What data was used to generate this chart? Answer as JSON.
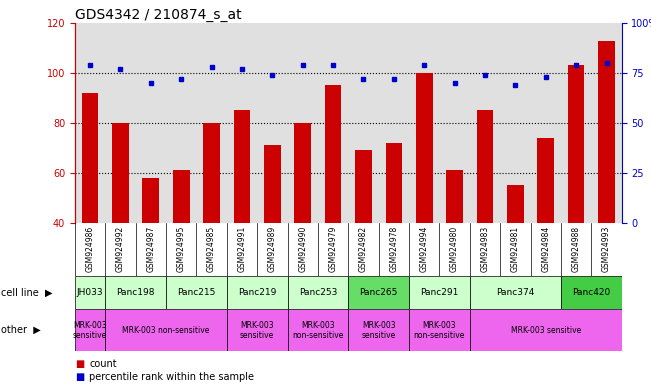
{
  "title": "GDS4342 / 210874_s_at",
  "samples": [
    "GSM924986",
    "GSM924992",
    "GSM924987",
    "GSM924995",
    "GSM924985",
    "GSM924991",
    "GSM924989",
    "GSM924990",
    "GSM924979",
    "GSM924982",
    "GSM924978",
    "GSM924994",
    "GSM924980",
    "GSM924983",
    "GSM924981",
    "GSM924984",
    "GSM924988",
    "GSM924993"
  ],
  "counts": [
    92,
    80,
    58,
    61,
    80,
    85,
    71,
    80,
    95,
    69,
    72,
    100,
    61,
    85,
    55,
    74,
    103,
    113
  ],
  "percentiles": [
    79,
    77,
    70,
    72,
    78,
    77,
    74,
    79,
    79,
    72,
    72,
    79,
    70,
    74,
    69,
    73,
    79,
    80
  ],
  "cell_lines": [
    {
      "label": "JH033",
      "start": 0,
      "end": 1,
      "color": "#ccffcc"
    },
    {
      "label": "Panc198",
      "start": 1,
      "end": 3,
      "color": "#ccffcc"
    },
    {
      "label": "Panc215",
      "start": 3,
      "end": 5,
      "color": "#ccffcc"
    },
    {
      "label": "Panc219",
      "start": 5,
      "end": 7,
      "color": "#ccffcc"
    },
    {
      "label": "Panc253",
      "start": 7,
      "end": 9,
      "color": "#ccffcc"
    },
    {
      "label": "Panc265",
      "start": 9,
      "end": 11,
      "color": "#66dd66"
    },
    {
      "label": "Panc291",
      "start": 11,
      "end": 13,
      "color": "#ccffcc"
    },
    {
      "label": "Panc374",
      "start": 13,
      "end": 16,
      "color": "#ccffcc"
    },
    {
      "label": "Panc420",
      "start": 16,
      "end": 18,
      "color": "#44cc44"
    }
  ],
  "other_groups": [
    {
      "label": "MRK-003\nsensitive",
      "start": 0,
      "end": 1,
      "color": "#ee66ee"
    },
    {
      "label": "MRK-003 non-sensitive",
      "start": 1,
      "end": 5,
      "color": "#ee66ee"
    },
    {
      "label": "MRK-003\nsensitive",
      "start": 5,
      "end": 7,
      "color": "#ee66ee"
    },
    {
      "label": "MRK-003\nnon-sensitive",
      "start": 7,
      "end": 9,
      "color": "#ee66ee"
    },
    {
      "label": "MRK-003\nsensitive",
      "start": 9,
      "end": 11,
      "color": "#ee66ee"
    },
    {
      "label": "MRK-003\nnon-sensitive",
      "start": 11,
      "end": 13,
      "color": "#ee66ee"
    },
    {
      "label": "MRK-003 sensitive",
      "start": 13,
      "end": 18,
      "color": "#ee66ee"
    }
  ],
  "ylim_left": [
    40,
    120
  ],
  "ylim_right": [
    0,
    100
  ],
  "yticks_left": [
    40,
    60,
    80,
    100,
    120
  ],
  "yticks_right": [
    0,
    25,
    50,
    75,
    100
  ],
  "bar_color": "#cc0000",
  "dot_color": "#0000cc",
  "background_color": "#e0e0e0",
  "grid_values": [
    60,
    80,
    100
  ],
  "legend_count": "count",
  "legend_pct": "percentile rank within the sample",
  "title_fontsize": 10,
  "tick_fontsize": 7,
  "label_fontsize": 7
}
